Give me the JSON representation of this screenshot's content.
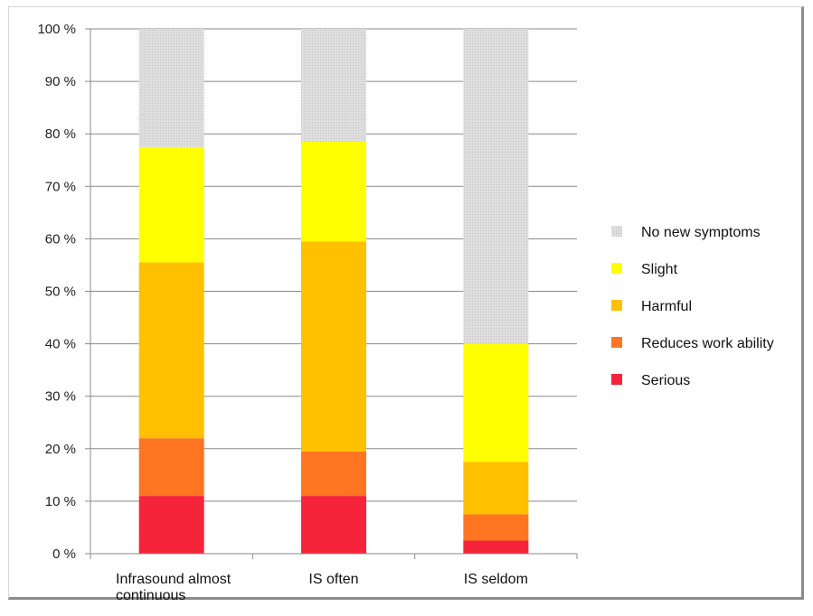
{
  "chart_data": {
    "type": "bar",
    "stacked": true,
    "categories": [
      "Infrasound almost continuous",
      "IS often",
      "IS seldom"
    ],
    "series": [
      {
        "name": "Serious",
        "color": "#f5243a",
        "values": [
          11,
          11,
          2.5
        ]
      },
      {
        "name": "Reduces work ability",
        "color": "#ff7522",
        "values": [
          11,
          8.5,
          5
        ]
      },
      {
        "name": "Harmful",
        "color": "#ffc000",
        "values": [
          33.5,
          40,
          10
        ]
      },
      {
        "name": "Slight",
        "color": "#ffff00",
        "values": [
          22,
          19,
          22.5
        ]
      },
      {
        "name": "No new symptoms",
        "color": "#d9d9d9",
        "values": [
          22.5,
          21.5,
          60
        ]
      }
    ],
    "y_ticks": [
      "0 %",
      "10 %",
      "20 %",
      "30 %",
      "40 %",
      "50 %",
      "60 %",
      "70 %",
      "80 %",
      "90 %",
      "100 %"
    ],
    "ylim": [
      0,
      100
    ],
    "grid": true,
    "legend_position": "right",
    "legend_order": [
      "No new symptoms",
      "Slight",
      "Harmful",
      "Reduces work ability",
      "Serious"
    ]
  }
}
